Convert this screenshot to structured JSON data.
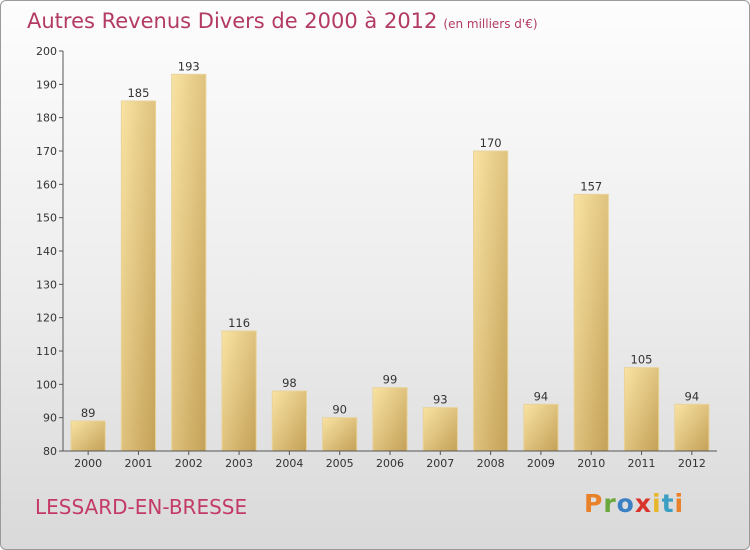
{
  "header": {
    "title": "Autres Revenus Divers de 2000 à 2012",
    "subtitle": "(en milliers d'€)"
  },
  "footer": {
    "commune": "LESSARD-EN-BRESSE"
  },
  "logo": {
    "text": "Proxiti"
  },
  "chart_data": {
    "type": "bar",
    "title": "Autres Revenus Divers de 2000 à 2012",
    "subtitle": "(en milliers d'€)",
    "xlabel": "",
    "ylabel": "",
    "categories": [
      "2000",
      "2001",
      "2002",
      "2003",
      "2004",
      "2005",
      "2006",
      "2007",
      "2008",
      "2009",
      "2010",
      "2011",
      "2012"
    ],
    "values": [
      89,
      185,
      193,
      116,
      98,
      90,
      99,
      93,
      170,
      94,
      157,
      105,
      94
    ],
    "ylim": [
      80,
      200
    ],
    "yticks": [
      80,
      90,
      100,
      110,
      120,
      130,
      140,
      150,
      160,
      170,
      180,
      190,
      200
    ],
    "grid": false,
    "legend": "none",
    "colors": {
      "bar_light": "#f7dc98",
      "bar_dark": "#c7a55c",
      "axis": "#555555",
      "title": "#b23a63"
    }
  }
}
